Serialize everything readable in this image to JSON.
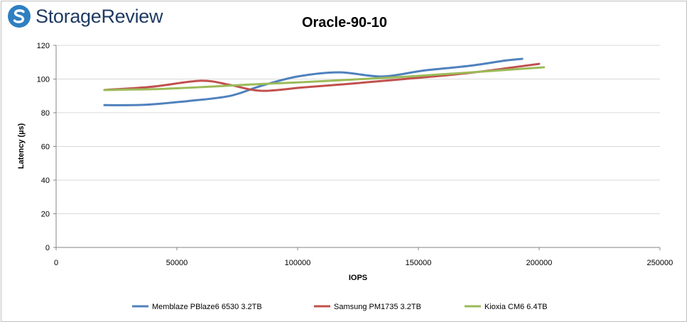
{
  "logo": {
    "text": "StorageReview"
  },
  "colors": {
    "logo_blue": "#2f7fc1",
    "logo_text": "#1f3a63",
    "gridline": "#d9d9d9",
    "axis": "#868686"
  },
  "chart_data": {
    "type": "line",
    "title": "Oracle-90-10",
    "xlabel": "IOPS",
    "ylabel": "Latency (µs)",
    "xlim": [
      0,
      250000
    ],
    "ylim": [
      0,
      120
    ],
    "xticks": [
      0,
      50000,
      100000,
      150000,
      200000,
      250000
    ],
    "yticks": [
      0,
      20,
      40,
      60,
      80,
      100,
      120
    ],
    "grid": "horizontal",
    "legend_position": "bottom",
    "series": [
      {
        "name": "Memblaze  PBlaze6 6530 3.2TB",
        "color": "#4f81bd",
        "points": [
          [
            20000,
            84.5
          ],
          [
            37000,
            84.7
          ],
          [
            55000,
            87
          ],
          [
            72000,
            90
          ],
          [
            85000,
            96
          ],
          [
            100000,
            101.5
          ],
          [
            117000,
            104
          ],
          [
            135000,
            101.5
          ],
          [
            152000,
            105
          ],
          [
            172000,
            108
          ],
          [
            186000,
            111
          ],
          [
            193000,
            112
          ]
        ]
      },
      {
        "name": "Samsung PM1735 3.2TB",
        "color": "#c0504d",
        "points": [
          [
            20000,
            93.5
          ],
          [
            40000,
            95.5
          ],
          [
            60000,
            99
          ],
          [
            72000,
            96.5
          ],
          [
            85000,
            93
          ],
          [
            102000,
            95
          ],
          [
            120000,
            97
          ],
          [
            140000,
            99.5
          ],
          [
            160000,
            102
          ],
          [
            178000,
            104.8
          ],
          [
            192000,
            107.5
          ],
          [
            200000,
            109
          ]
        ]
      },
      {
        "name": "Kioxia CM6 6.4TB",
        "color": "#9bbb59",
        "points": [
          [
            20000,
            93.5
          ],
          [
            40000,
            94
          ],
          [
            60000,
            95.2
          ],
          [
            80000,
            96.7
          ],
          [
            100000,
            98
          ],
          [
            120000,
            99.5
          ],
          [
            140000,
            101
          ],
          [
            160000,
            102.8
          ],
          [
            180000,
            104.8
          ],
          [
            195000,
            106.3
          ],
          [
            202000,
            107
          ]
        ]
      }
    ]
  }
}
